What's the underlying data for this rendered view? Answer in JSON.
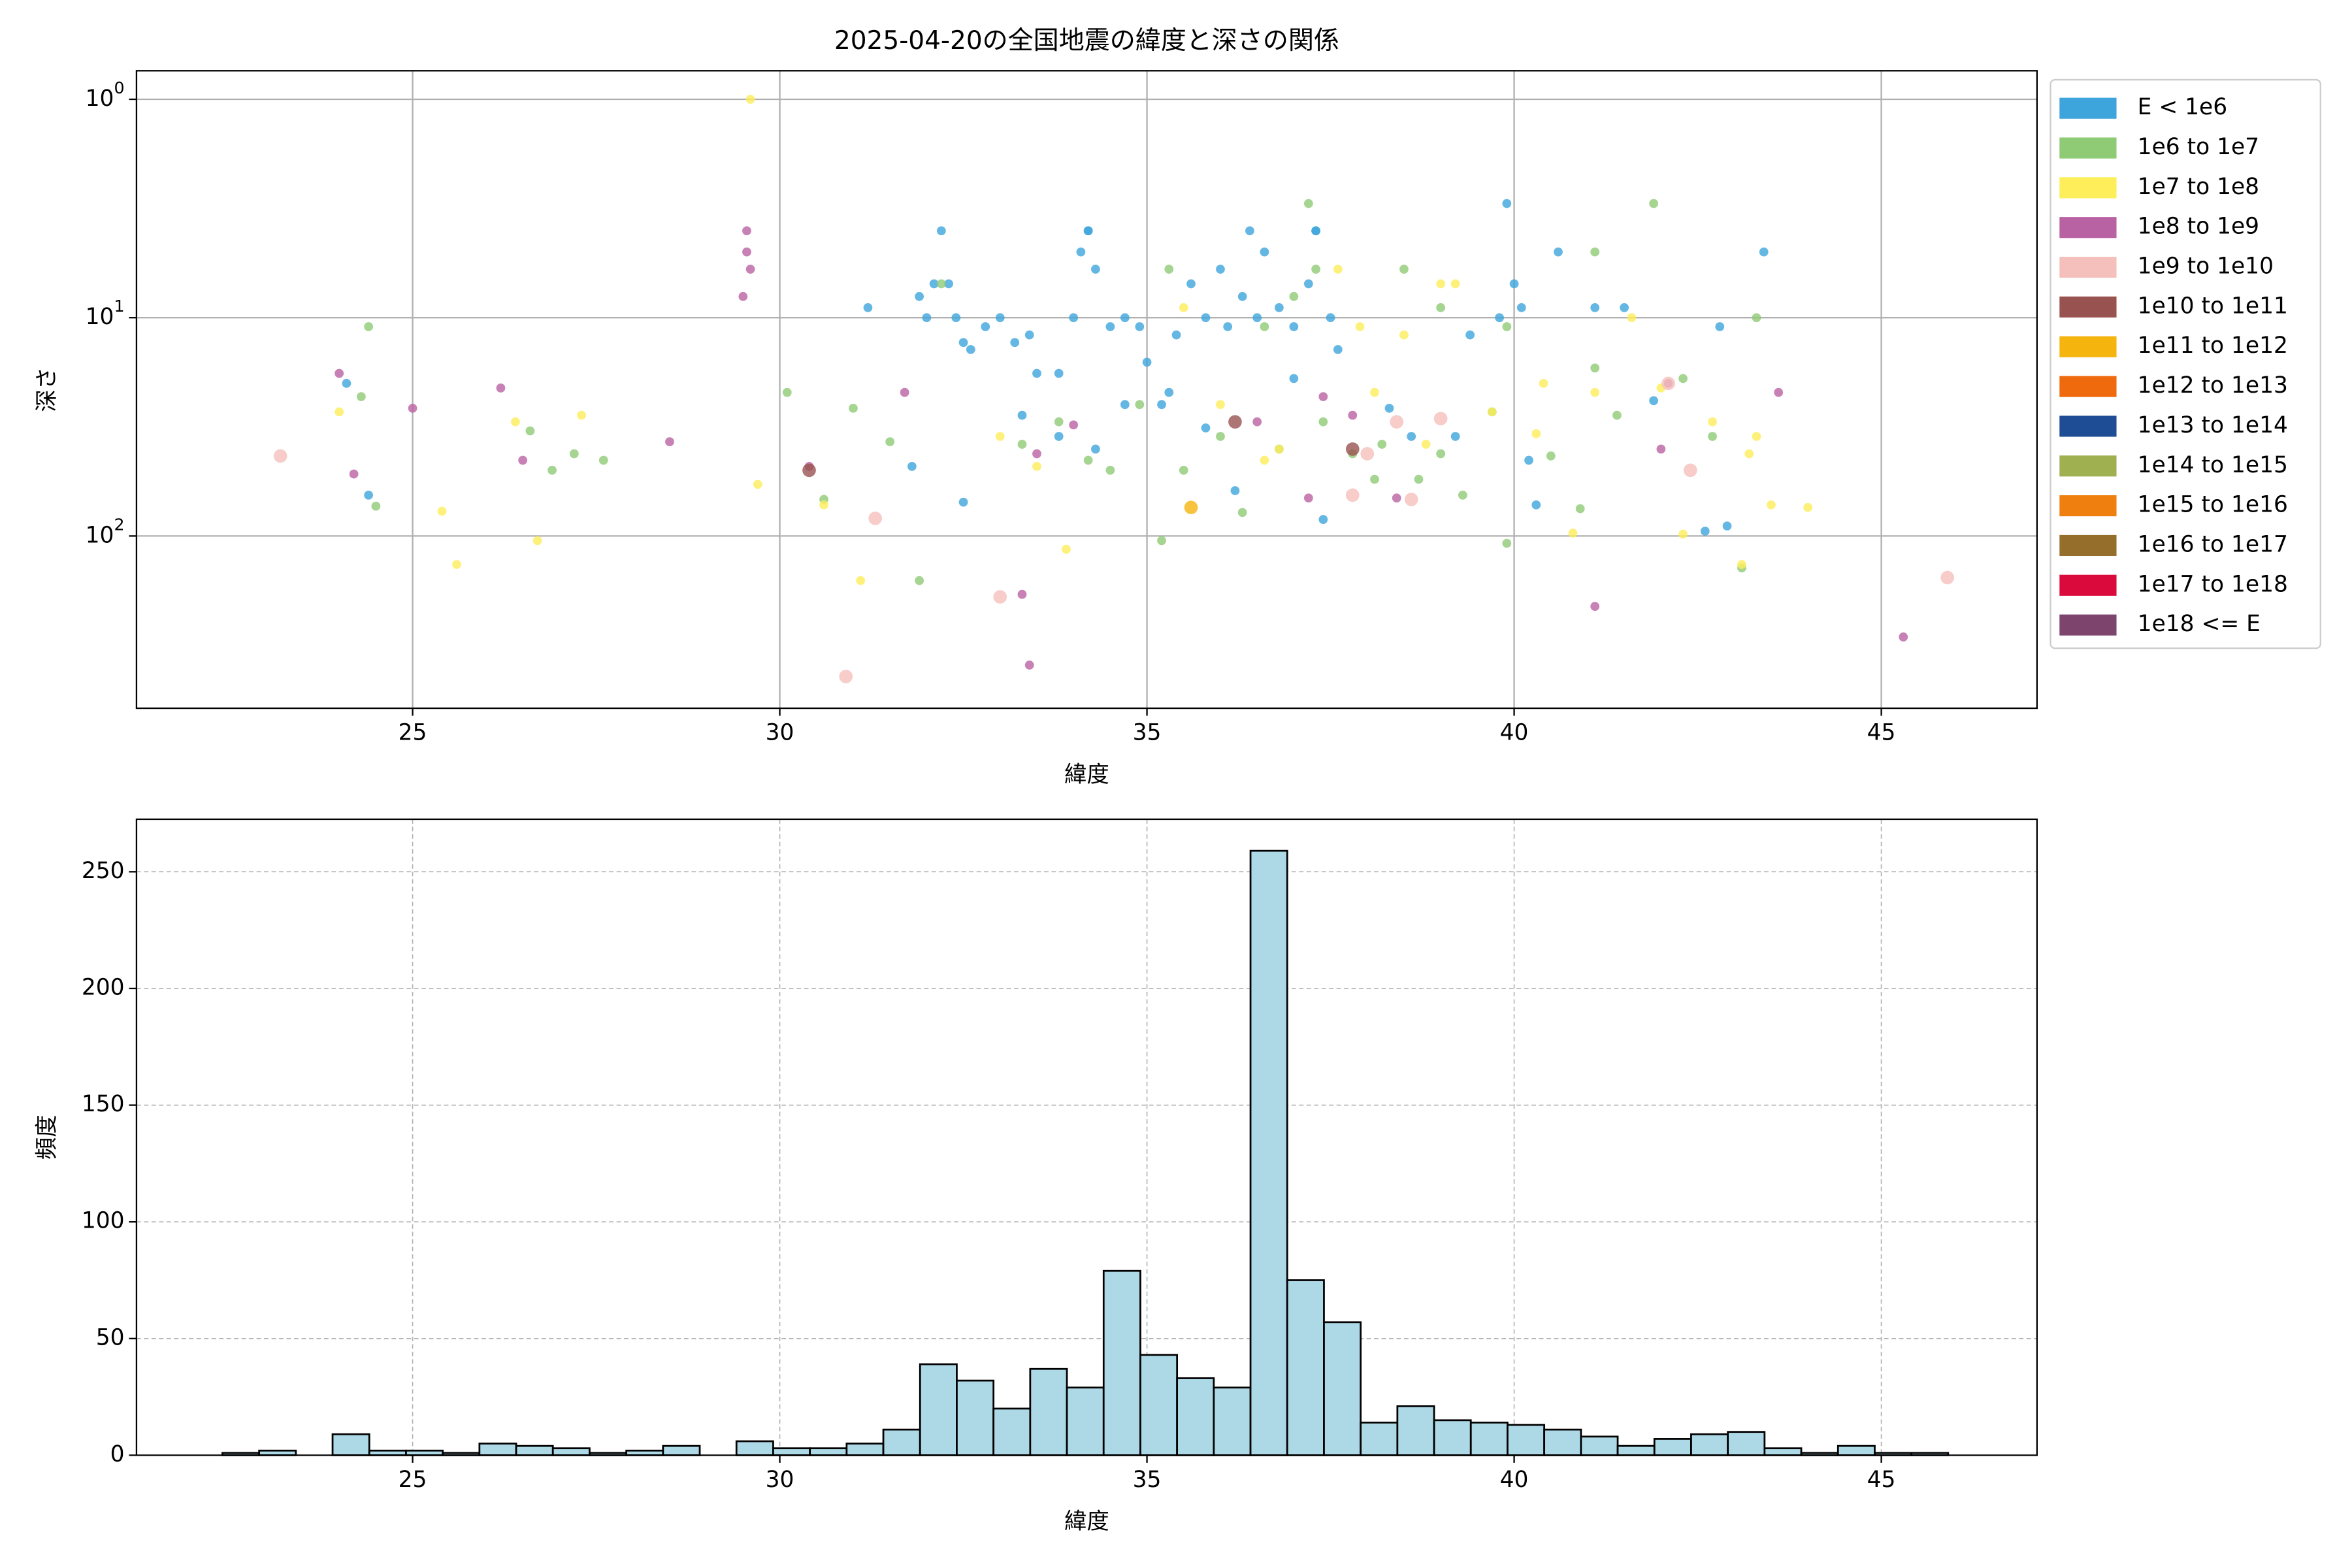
{
  "chart_data": [
    {
      "type": "scatter",
      "title": "2025-04-20の全国地震の緯度と深さの関係",
      "x_label": "緯度",
      "y_label": "深さ",
      "xlim": [
        21.24,
        47.12
      ],
      "xticks": [
        25,
        30,
        35,
        40,
        45
      ],
      "ylim": [
        0.74,
        615
      ],
      "y_log": true,
      "y_inverted": true,
      "yticks": [
        {
          "value": 1,
          "label": "10",
          "exponent": "0"
        },
        {
          "value": 10,
          "label": "10",
          "exponent": "1"
        },
        {
          "value": 100,
          "label": "10",
          "exponent": "2"
        }
      ],
      "grid": true,
      "legend": "outside right upper",
      "series": [
        {
          "name": "E < 1e6",
          "color": "#3ea5dc",
          "x": [
            24.1,
            24.4,
            31.8,
            31.9,
            32,
            32.1,
            32.2,
            32.3,
            32.4,
            32.5,
            32.6,
            32.8,
            33,
            33.2,
            33.4,
            33.5,
            33.8,
            34,
            34.1,
            34.2,
            34.3,
            34.5,
            34.7,
            34.9,
            35,
            35.2,
            35.4,
            35.6,
            35.8,
            36,
            36.1,
            36.3,
            36.5,
            36.6,
            36.8,
            37,
            37.2,
            37.3,
            37.5,
            37.6,
            37.4,
            37,
            33.8,
            34.3,
            34.7,
            35.3,
            35.8,
            36.2,
            32.5,
            33.3,
            38.3,
            38.6,
            39.2,
            39.4,
            39.8,
            39.9,
            40,
            40.1,
            40.2,
            40.3,
            40.6,
            41.1,
            41.5,
            41.9,
            42.6,
            42.9,
            42.8,
            43.4,
            31.2,
            34.2,
            36.4,
            37.3
          ],
          "values": [
            20,
            65,
            48,
            8,
            10,
            7,
            4,
            7,
            10,
            13,
            14,
            11,
            10,
            13,
            12,
            18,
            18,
            10,
            5,
            4,
            6,
            11,
            10,
            11,
            16,
            25,
            12,
            7,
            10,
            6,
            11,
            8,
            10,
            5,
            9,
            11,
            7,
            4,
            10,
            14,
            84,
            19,
            35,
            40,
            25,
            22,
            32,
            62,
            70,
            28,
            26,
            35,
            35,
            12,
            10,
            3,
            7,
            9,
            45,
            72,
            5,
            9,
            9,
            24,
            95,
            90,
            11,
            5,
            9,
            4,
            4,
            4
          ]
        },
        {
          "name": "1e6 to 1e7",
          "color": "#8fca74",
          "x": [
            24.4,
            24.3,
            24.5,
            26.6,
            26.9,
            27.2,
            27.6,
            30.1,
            30.6,
            31,
            31.5,
            31.9,
            32.2,
            33.3,
            33.8,
            34.2,
            34.5,
            34.9,
            35.2,
            35.5,
            36,
            36.3,
            36.6,
            37,
            37.2,
            37.3,
            37.4,
            37.8,
            38.2,
            38.5,
            38.7,
            39,
            39.3,
            39.7,
            39.9,
            39.9,
            40.5,
            40.9,
            41.1,
            41.1,
            41.4,
            41.9,
            42.3,
            42.7,
            43.1,
            43.3,
            39,
            38.1,
            36.8,
            35.3
          ],
          "values": [
            11,
            23,
            73,
            33,
            50,
            42,
            45,
            22,
            68,
            26,
            37,
            160,
            7,
            38,
            30,
            45,
            50,
            25,
            105,
            50,
            35,
            78,
            11,
            8,
            3,
            6,
            30,
            42,
            38,
            6,
            55,
            9,
            65,
            27,
            108,
            11,
            43,
            75,
            17,
            5,
            28,
            3,
            19,
            35,
            140,
            10,
            42,
            55,
            40,
            6
          ]
        },
        {
          "name": "1e7 to 1e8",
          "color": "#fdee5a",
          "x": [
            24,
            25.4,
            25.6,
            26.4,
            26.7,
            27.3,
            29.6,
            29.7,
            30.6,
            31.1,
            33,
            33.5,
            33.9,
            35.5,
            36,
            36.8,
            37.6,
            37.9,
            38.1,
            38.5,
            38.8,
            39.2,
            39.7,
            40.3,
            40.4,
            40.8,
            41.1,
            41.6,
            42,
            42.3,
            42.7,
            43.1,
            43.2,
            43.3,
            43.5,
            44,
            39,
            36.6
          ],
          "values": [
            27,
            77,
            135,
            30,
            105,
            28,
            1,
            58,
            72,
            160,
            35,
            48,
            115,
            9,
            25,
            40,
            6,
            11,
            22,
            12,
            38,
            7,
            27,
            34,
            20,
            97,
            22,
            10,
            21,
            98,
            30,
            135,
            42,
            35,
            72,
            74,
            7,
            45
          ]
        },
        {
          "name": "1e8 to 1e9",
          "color": "#b962a3",
          "x": [
            24,
            24.2,
            25,
            26.2,
            26.5,
            28.5,
            29.5,
            29.55,
            29.6,
            29.55,
            30.4,
            31.7,
            33.3,
            33.4,
            33.5,
            34,
            36.5,
            37.2,
            37.4,
            37.8,
            38.4,
            41.1,
            42.1,
            43.6,
            45.3,
            42
          ],
          "values": [
            18,
            52,
            26,
            21,
            45,
            37,
            8,
            5,
            6,
            4,
            48,
            22,
            185,
            390,
            42,
            31,
            30,
            67,
            23,
            28,
            67,
            210,
            20,
            22,
            290,
            40
          ]
        },
        {
          "name": "1e9 to 1e10",
          "color": "#f5bfbc",
          "x": [
            23.2,
            31.3,
            30.9,
            33,
            37.8,
            38,
            38.6,
            39,
            42.1,
            42.4,
            45.9,
            38.4
          ],
          "values": [
            43,
            83,
            440,
            190,
            65,
            42,
            68,
            29,
            20,
            50,
            155,
            30
          ]
        },
        {
          "name": "1e10 to 1e11",
          "color": "#985250",
          "x": [
            30.4,
            37.8,
            36.2
          ],
          "values": [
            50,
            40,
            30
          ]
        },
        {
          "name": "1e11 to 1e12",
          "color": "#f6b40f",
          "x": [
            35.6
          ],
          "values": [
            74
          ]
        },
        {
          "name": "1e12 to 1e13",
          "color": "#ef6a0c",
          "x": [],
          "values": []
        },
        {
          "name": "1e13 to 1e14",
          "color": "#1e4c95",
          "x": [],
          "values": []
        },
        {
          "name": "1e14 to 1e15",
          "color": "#9fb051",
          "x": [],
          "values": []
        },
        {
          "name": "1e15 to 1e16",
          "color": "#ef7f0f",
          "x": [],
          "values": []
        },
        {
          "name": "1e16 to 1e17",
          "color": "#956e2b",
          "x": [],
          "values": []
        },
        {
          "name": "1e17 to 1e18",
          "color": "#db0a3d",
          "x": [],
          "values": []
        },
        {
          "name": "1e18 <= E",
          "color": "#7d446d",
          "x": [],
          "values": []
        }
      ]
    },
    {
      "type": "histogram",
      "x_label": "緯度",
      "y_label": "頻度",
      "color": "#add8e6",
      "edge_color": "#000000",
      "xlim": [
        21.24,
        47.12
      ],
      "xticks": [
        25,
        30,
        35,
        40,
        45
      ],
      "ylim": [
        0,
        272.5
      ],
      "yticks": [
        0,
        50,
        100,
        150,
        200,
        250
      ],
      "grid": true,
      "grid_style": "dashed",
      "bins": [
        22.41,
        22.91,
        23.41,
        23.91,
        24.41,
        24.91,
        25.41,
        25.91,
        26.41,
        26.91,
        27.41,
        27.91,
        28.41,
        28.91,
        29.41,
        29.91,
        30.41,
        30.91,
        31.41,
        31.91,
        32.41,
        32.91,
        33.41,
        33.91,
        34.41,
        34.91,
        35.41,
        35.91,
        36.41,
        36.91,
        37.41,
        37.91,
        38.41,
        38.91,
        39.41,
        39.91,
        40.41,
        40.91,
        41.41,
        41.91,
        42.41,
        42.91,
        43.41,
        43.91,
        44.41,
        44.91,
        45.41,
        45.91
      ],
      "values": [
        1,
        2,
        0,
        9,
        2,
        2,
        1,
        5,
        4,
        3,
        1,
        2,
        4,
        0,
        6,
        3,
        3,
        5,
        11,
        39,
        32,
        20,
        37,
        29,
        79,
        43,
        33,
        29,
        259,
        75,
        57,
        14,
        21,
        15,
        14,
        13,
        11,
        8,
        4,
        7,
        9,
        10,
        3,
        1,
        4,
        1,
        1
      ]
    }
  ]
}
